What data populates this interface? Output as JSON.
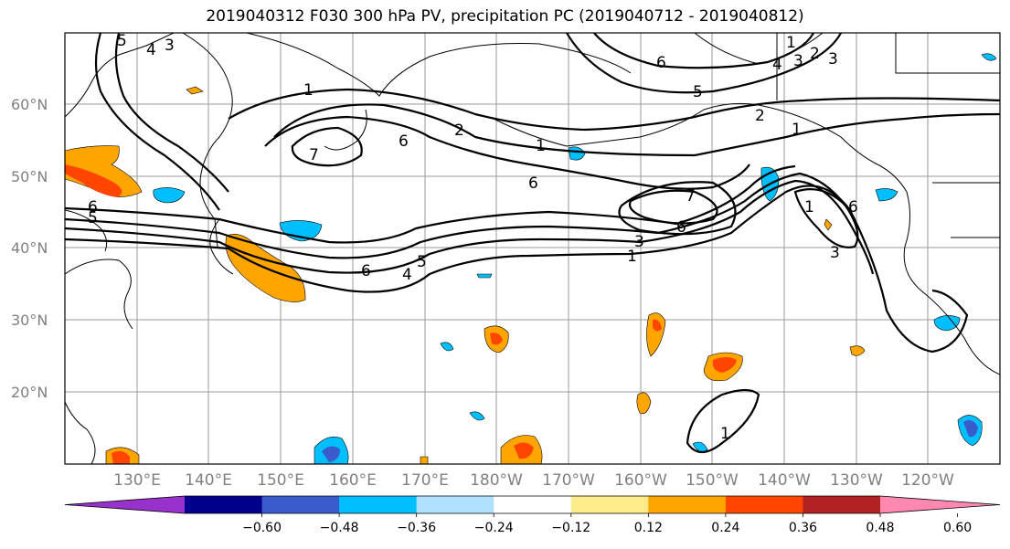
{
  "title": "2019040312 F030 300 hPa PV, precipitation PC (2019040712 - 2019040812)",
  "lat_labels": [
    "60°N",
    "50°N",
    "40°N",
    "30°N",
    "20°N"
  ],
  "lon_labels": [
    "130°E",
    "140°E",
    "150°E",
    "160°E",
    "170°E",
    "180°W",
    "170°W",
    "160°W",
    "150°W",
    "140°W",
    "130°W",
    "120°W"
  ],
  "colorbar": {
    "colors": [
      "#9932cc",
      "#00008b",
      "#3a5bcc",
      "#00bfff",
      "#b0e2ff",
      "#ffffff",
      "#ffeb8a",
      "#ffa500",
      "#ff4500",
      "#b22222",
      "#ff88b0"
    ],
    "tick_labels": [
      "−0.60",
      "−0.48",
      "−0.36",
      "−0.24",
      "−0.12",
      "0.12",
      "0.24",
      "0.36",
      "0.48",
      "0.60"
    ]
  },
  "contour_labels": [
    "5",
    "4",
    "3",
    "1",
    "2",
    "6",
    "7",
    "6",
    "5",
    "4",
    "3",
    "2",
    "1",
    "6",
    "6",
    "6",
    "6",
    "4",
    "5",
    "5",
    "3",
    "1",
    "7",
    "6",
    "3",
    "1",
    "2",
    "1",
    "3",
    "1",
    "1"
  ]
}
